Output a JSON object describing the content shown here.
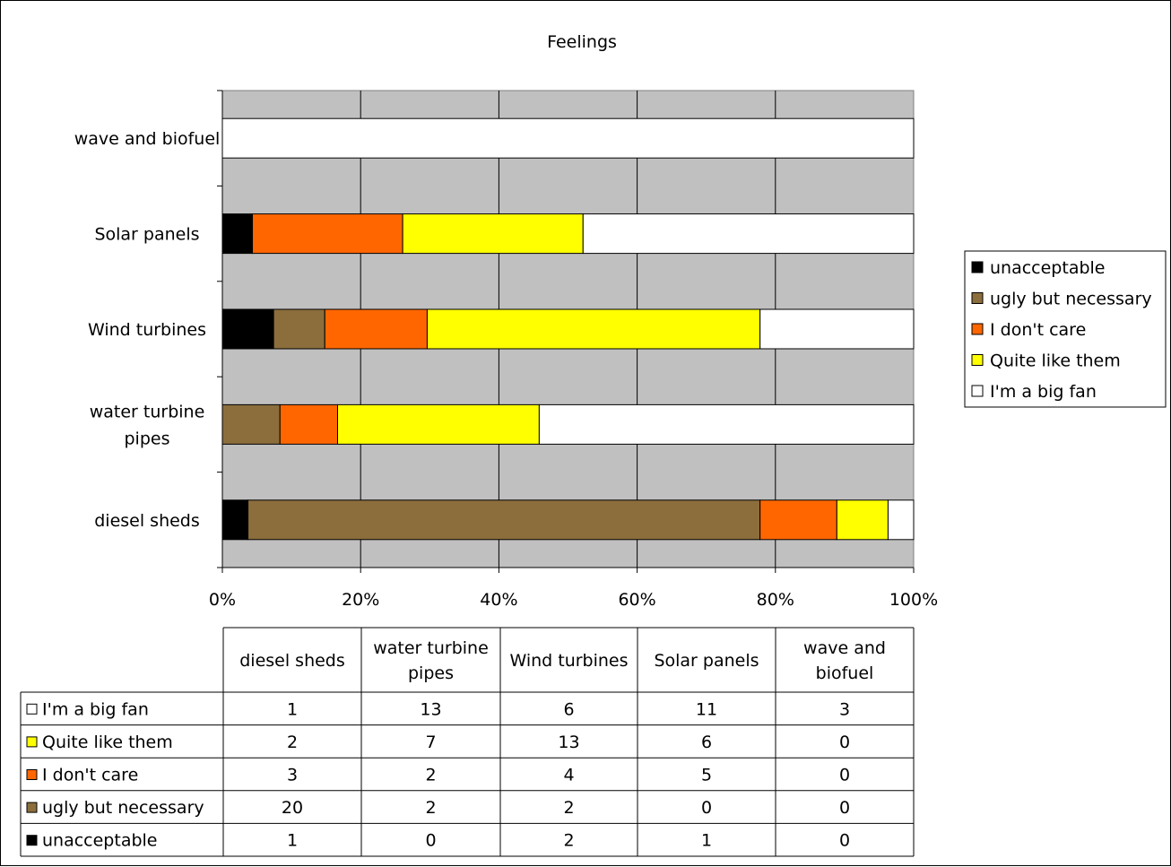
{
  "chart_data": {
    "type": "bar",
    "orientation": "horizontal",
    "stacked": "percent",
    "title": "Feelings",
    "categories": [
      "diesel sheds",
      "water turbine pipes",
      "Wind turbines",
      "Solar panels",
      "wave and biofuel"
    ],
    "series": [
      {
        "name": "unacceptable",
        "color": "#000000",
        "values": [
          1,
          0,
          2,
          1,
          0
        ]
      },
      {
        "name": "ugly but necessary",
        "color": "#8B6E3C",
        "values": [
          20,
          2,
          2,
          0,
          0
        ]
      },
      {
        "name": "I don't care",
        "color": "#FF6600",
        "values": [
          3,
          2,
          4,
          5,
          0
        ]
      },
      {
        "name": "Quite like them",
        "color": "#FFFF00",
        "values": [
          2,
          7,
          13,
          6,
          0
        ]
      },
      {
        "name": "I'm a big fan",
        "color": "#FFFFFF",
        "values": [
          1,
          13,
          6,
          11,
          3
        ]
      }
    ],
    "x_ticks": [
      "0%",
      "20%",
      "40%",
      "60%",
      "80%",
      "100%"
    ],
    "xlim": [
      0,
      100
    ],
    "grid": true,
    "plot_background": "#C0C0C0",
    "legend_position": "right",
    "data_table": {
      "column_headers": [
        [
          "diesel sheds"
        ],
        [
          "water turbine",
          "pipes"
        ],
        [
          "Wind turbines"
        ],
        [
          "Solar panels"
        ],
        [
          "wave and",
          "biofuel"
        ]
      ],
      "row_order": [
        "I'm a big fan",
        "Quite like them",
        "I don't care",
        "ugly but necessary",
        "unacceptable"
      ]
    },
    "category_labels": [
      [
        "diesel sheds"
      ],
      [
        "water turbine",
        "pipes"
      ],
      [
        "Wind turbines"
      ],
      [
        "Solar panels"
      ],
      [
        "wave and biofuel"
      ]
    ]
  }
}
